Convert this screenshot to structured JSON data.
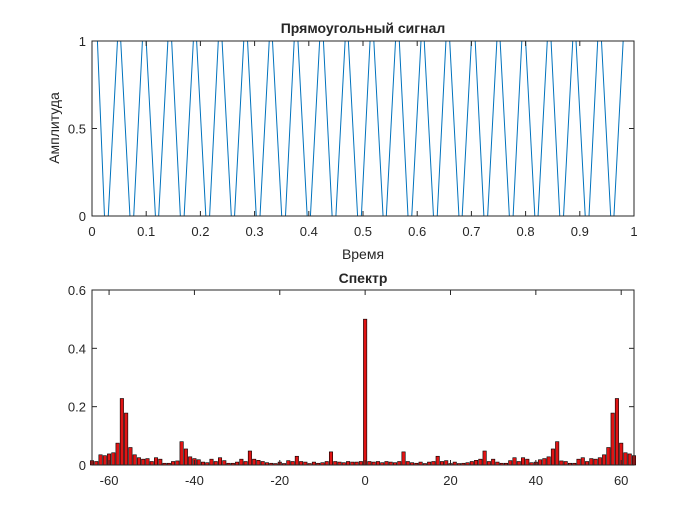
{
  "chart_data": [
    {
      "type": "line",
      "title": "Прямоугольный сигнал",
      "xlabel": "Время",
      "ylabel": "Амплитуда",
      "xlim": [
        0,
        1
      ],
      "ylim": [
        0,
        1
      ],
      "x_ticks": [
        "0",
        "0.1",
        "0.2",
        "0.3",
        "0.4",
        "0.5",
        "0.6",
        "0.7",
        "0.8",
        "0.9",
        "1"
      ],
      "y_ticks": [
        "0",
        "0.5",
        "1"
      ],
      "line_color": "#0072bd",
      "series": [
        {
          "x": [
            0.0,
            0.01,
            0.023,
            0.03,
            0.047,
            0.053,
            0.07,
            0.077,
            0.093,
            0.1,
            0.117,
            0.123,
            0.14,
            0.147,
            0.163,
            0.17,
            0.187,
            0.193,
            0.21,
            0.217,
            0.233,
            0.24,
            0.257,
            0.263,
            0.28,
            0.287,
            0.303,
            0.31,
            0.327,
            0.333,
            0.35,
            0.357,
            0.373,
            0.38,
            0.397,
            0.403,
            0.42,
            0.427,
            0.443,
            0.45,
            0.467,
            0.473,
            0.49,
            0.497,
            0.513,
            0.52,
            0.537,
            0.543,
            0.56,
            0.567,
            0.583,
            0.59,
            0.607,
            0.613,
            0.63,
            0.637,
            0.653,
            0.66,
            0.677,
            0.683,
            0.7,
            0.707,
            0.723,
            0.73,
            0.747,
            0.753,
            0.77,
            0.777,
            0.793,
            0.8,
            0.817,
            0.823,
            0.84,
            0.847,
            0.863,
            0.87,
            0.887,
            0.893,
            0.91,
            0.917,
            0.933,
            0.94,
            0.957,
            0.963,
            0.98,
            0.987,
            1.0
          ],
          "y": [
            1,
            1,
            0,
            0,
            1,
            1,
            0,
            0,
            1,
            1,
            0,
            0,
            1,
            1,
            0,
            0,
            1,
            1,
            0,
            0,
            1,
            1,
            0,
            0,
            1,
            1,
            0,
            0,
            1,
            1,
            0,
            0,
            1,
            1,
            0,
            0,
            1,
            1,
            0,
            0,
            1,
            1,
            0,
            0,
            1,
            1,
            0,
            0,
            1,
            1,
            0,
            0,
            1,
            1,
            0,
            0,
            1,
            1,
            0,
            0,
            1,
            1,
            0,
            0,
            1,
            1,
            0,
            0,
            1,
            1,
            0,
            0,
            1,
            1,
            0,
            0,
            1,
            1,
            0,
            0,
            1,
            1,
            0,
            0,
            1,
            1,
            1
          ]
        }
      ]
    },
    {
      "type": "bar",
      "title": "Спектр",
      "xlim": [
        -64,
        63
      ],
      "ylim": [
        0,
        0.6
      ],
      "x_ticks": [
        "-60",
        "-40",
        "-20",
        "0",
        "20",
        "40",
        "60"
      ],
      "y_ticks": [
        "0",
        "0.2",
        "0.4",
        "0.6"
      ],
      "bar_color": "#e01414",
      "edge_color": "#000000",
      "x_start": -64,
      "values": [
        0.015,
        0.012,
        0.035,
        0.032,
        0.038,
        0.042,
        0.075,
        0.228,
        0.178,
        0.06,
        0.035,
        0.025,
        0.02,
        0.022,
        0.012,
        0.025,
        0.02,
        0.006,
        0.006,
        0.012,
        0.014,
        0.08,
        0.055,
        0.028,
        0.022,
        0.018,
        0.01,
        0.008,
        0.02,
        0.012,
        0.025,
        0.015,
        0.006,
        0.006,
        0.01,
        0.02,
        0.012,
        0.048,
        0.02,
        0.016,
        0.012,
        0.008,
        0.006,
        0.005,
        0.01,
        0.005,
        0.015,
        0.012,
        0.03,
        0.012,
        0.01,
        0.005,
        0.01,
        0.006,
        0.008,
        0.012,
        0.045,
        0.012,
        0.01,
        0.008,
        0.012,
        0.01,
        0.01,
        0.012,
        0.5,
        0.012,
        0.01,
        0.012,
        0.008,
        0.012,
        0.01,
        0.008,
        0.012,
        0.045,
        0.012,
        0.008,
        0.006,
        0.01,
        0.005,
        0.01,
        0.012,
        0.03,
        0.012,
        0.015,
        0.005,
        0.01,
        0.005,
        0.006,
        0.008,
        0.012,
        0.016,
        0.02,
        0.048,
        0.012,
        0.02,
        0.01,
        0.006,
        0.006,
        0.015,
        0.025,
        0.012,
        0.025,
        0.02,
        0.008,
        0.01,
        0.018,
        0.022,
        0.028,
        0.055,
        0.08,
        0.014,
        0.012,
        0.006,
        0.006,
        0.02,
        0.025,
        0.012,
        0.022,
        0.02,
        0.025,
        0.035,
        0.06,
        0.178,
        0.228,
        0.075,
        0.042,
        0.038,
        0.032
      ]
    }
  ]
}
